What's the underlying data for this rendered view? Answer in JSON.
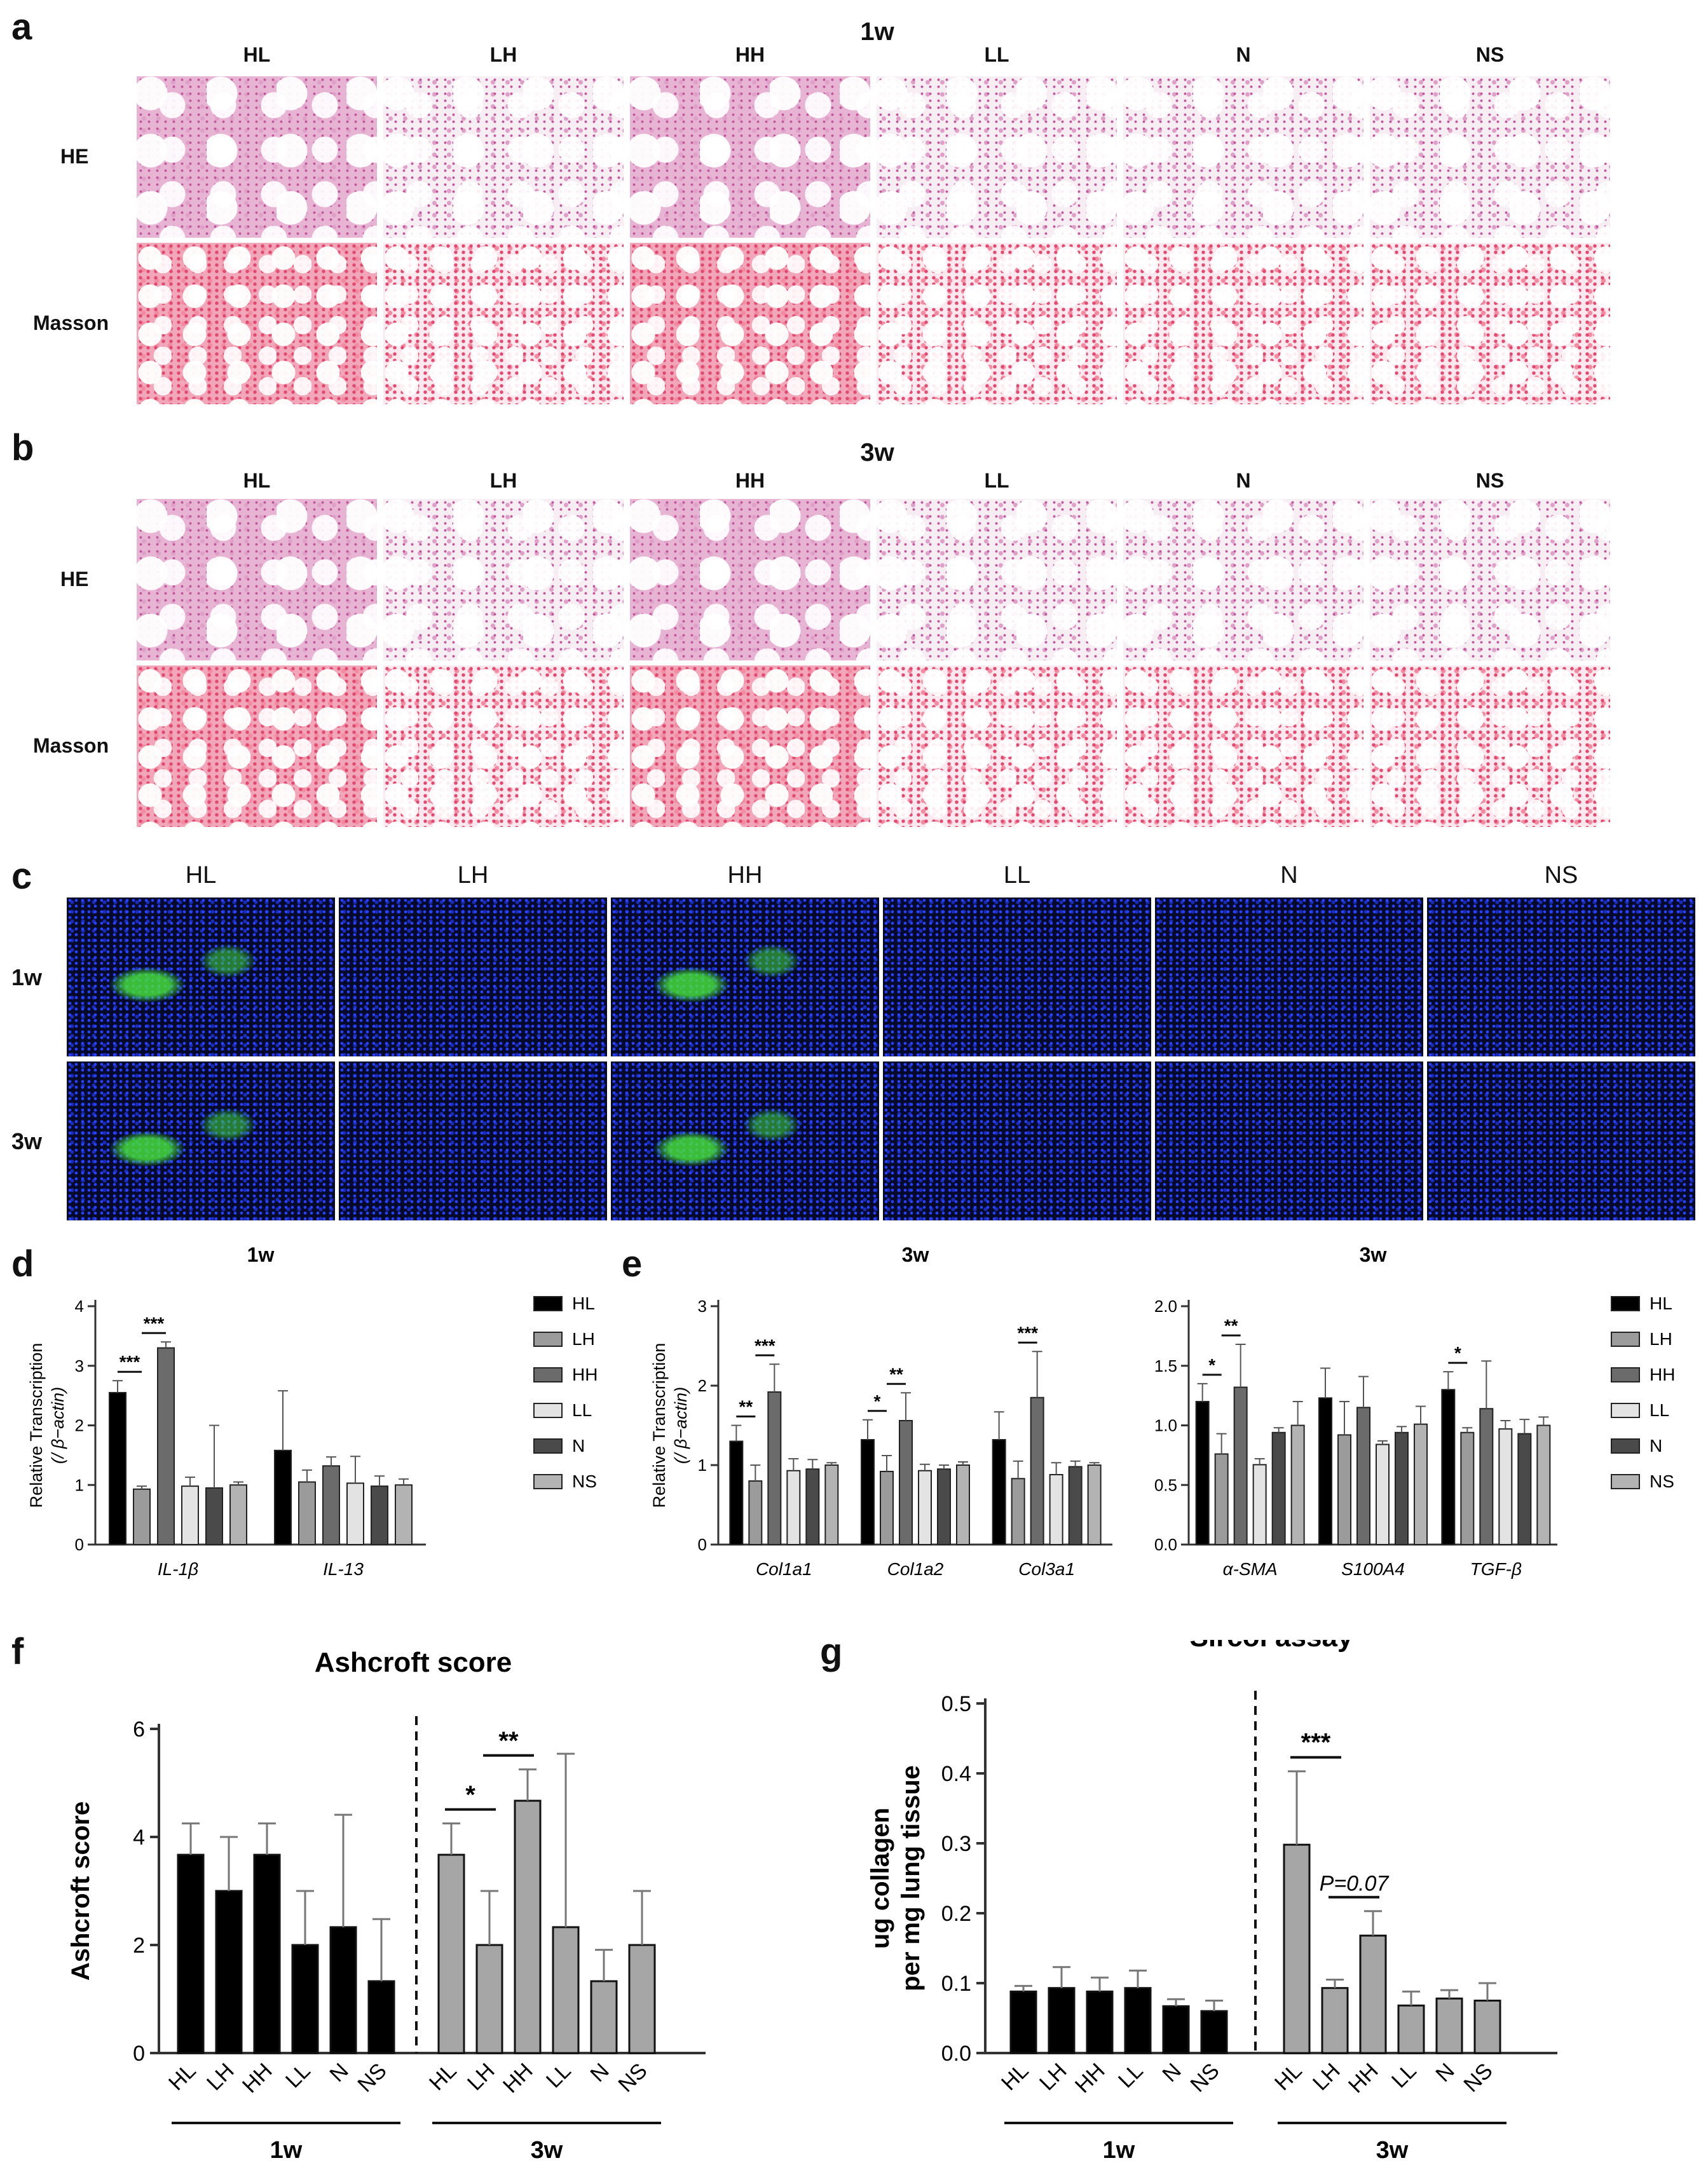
{
  "panels": {
    "a": "a",
    "b": "b",
    "c": "c",
    "d": "d",
    "e": "e",
    "f": "f",
    "g": "g"
  },
  "groups": [
    "HL",
    "LH",
    "HH",
    "LL",
    "N",
    "NS"
  ],
  "panel_a": {
    "title": "1w",
    "row_labels": [
      "HE",
      "Masson"
    ]
  },
  "panel_b": {
    "title": "3w",
    "row_labels": [
      "HE",
      "Masson"
    ]
  },
  "panel_c": {
    "row_labels": [
      "1w",
      "3w"
    ]
  },
  "panel_d": {
    "title": "1w",
    "ylabel_line1": "Relative Transcription",
    "ylabel_line2": "(/ β−actin)"
  },
  "panel_e": {
    "title_left": "3w",
    "title_right": "3w",
    "ylabel_line1": "Relative Transcription",
    "ylabel_line2": "(/ β−actin)"
  },
  "legend_colors": [
    "#000000",
    "#9b9b9b",
    "#6b6b6b",
    "#e3e3e3",
    "#4a4a4a",
    "#b3b3b3"
  ],
  "panel_f": {
    "title": "Ashcroft score",
    "ylabel": "Ashcroft score",
    "time_labels": [
      "1w",
      "3w"
    ]
  },
  "panel_g": {
    "title": "Sircol assay",
    "ylabel_line1": "ug collagen",
    "ylabel_line2": "per mg lung tissue",
    "time_labels": [
      "1w",
      "3w"
    ],
    "pvalue": "P=0.07"
  },
  "chart_data": [
    {
      "id": "d",
      "type": "bar",
      "title": "1w",
      "ylabel": "Relative Transcription (/ β−actin)",
      "categories": [
        "IL-1β",
        "IL-13"
      ],
      "ylim": [
        0,
        4
      ],
      "yticks": [
        0,
        1,
        2,
        3,
        4
      ],
      "series": [
        {
          "name": "HL",
          "values": [
            2.55,
            1.58
          ],
          "err": [
            0.2,
            1.0
          ]
        },
        {
          "name": "LH",
          "values": [
            0.93,
            1.05
          ],
          "err": [
            0.05,
            0.2
          ]
        },
        {
          "name": "HH",
          "values": [
            3.3,
            1.32
          ],
          "err": [
            0.1,
            0.15
          ]
        },
        {
          "name": "LL",
          "values": [
            0.98,
            1.03
          ],
          "err": [
            0.15,
            0.45
          ]
        },
        {
          "name": "N",
          "values": [
            0.95,
            0.98
          ],
          "err": [
            1.05,
            0.17
          ]
        },
        {
          "name": "NS",
          "values": [
            1.0,
            1.0
          ],
          "err": [
            0.05,
            0.1
          ]
        }
      ],
      "annotations": [
        {
          "cat": 0,
          "from": 0,
          "to": 1,
          "text": "***"
        },
        {
          "cat": 0,
          "from": 1,
          "to": 2,
          "text": "***"
        }
      ]
    },
    {
      "id": "e1",
      "type": "bar",
      "title": "3w",
      "ylabel": "Relative Transcription (/ β−actin)",
      "categories": [
        "Col1a1",
        "Col1a2",
        "Col3a1"
      ],
      "ylim": [
        0,
        3
      ],
      "yticks": [
        0,
        1,
        2,
        3
      ],
      "series": [
        {
          "name": "HL",
          "values": [
            1.3,
            1.32,
            1.32
          ],
          "err": [
            0.2,
            0.25,
            0.35
          ]
        },
        {
          "name": "LH",
          "values": [
            0.8,
            0.92,
            0.83
          ],
          "err": [
            0.2,
            0.2,
            0.22
          ]
        },
        {
          "name": "HH",
          "values": [
            1.92,
            1.56,
            1.85
          ],
          "err": [
            0.35,
            0.35,
            0.58
          ]
        },
        {
          "name": "LL",
          "values": [
            0.93,
            0.93,
            0.88
          ],
          "err": [
            0.15,
            0.08,
            0.15
          ]
        },
        {
          "name": "N",
          "values": [
            0.95,
            0.95,
            0.98
          ],
          "err": [
            0.12,
            0.05,
            0.07
          ]
        },
        {
          "name": "NS",
          "values": [
            1.0,
            1.0,
            1.0
          ],
          "err": [
            0.03,
            0.04,
            0.03
          ]
        }
      ],
      "annotations": [
        {
          "cat": 0,
          "from": 0,
          "to": 1,
          "text": "**"
        },
        {
          "cat": 0,
          "from": 1,
          "to": 2,
          "text": "***"
        },
        {
          "cat": 1,
          "from": 0,
          "to": 1,
          "text": "*"
        },
        {
          "cat": 1,
          "from": 1,
          "to": 2,
          "text": "**"
        },
        {
          "cat": 2,
          "from": 1,
          "to": 2,
          "text": "***"
        }
      ]
    },
    {
      "id": "e2",
      "type": "bar",
      "title": "3w",
      "categories": [
        "α-SMA",
        "S100A4",
        "TGF-β"
      ],
      "ylim": [
        0,
        2
      ],
      "yticks": [
        0,
        0.5,
        1.0,
        1.5,
        2.0
      ],
      "series": [
        {
          "name": "HL",
          "values": [
            1.2,
            1.23,
            1.3
          ],
          "err": [
            0.15,
            0.25,
            0.15
          ]
        },
        {
          "name": "LH",
          "values": [
            0.76,
            0.92,
            0.94
          ],
          "err": [
            0.17,
            0.28,
            0.04
          ]
        },
        {
          "name": "HH",
          "values": [
            1.32,
            1.15,
            1.14
          ],
          "err": [
            0.36,
            0.26,
            0.4
          ]
        },
        {
          "name": "LL",
          "values": [
            0.67,
            0.84,
            0.97
          ],
          "err": [
            0.05,
            0.03,
            0.07
          ]
        },
        {
          "name": "N",
          "values": [
            0.94,
            0.94,
            0.93
          ],
          "err": [
            0.04,
            0.05,
            0.12
          ]
        },
        {
          "name": "NS",
          "values": [
            1.0,
            1.01,
            1.0
          ],
          "err": [
            0.2,
            0.15,
            0.07
          ]
        }
      ],
      "annotations": [
        {
          "cat": 0,
          "from": 0,
          "to": 1,
          "text": "*"
        },
        {
          "cat": 0,
          "from": 1,
          "to": 2,
          "text": "**"
        },
        {
          "cat": 2,
          "from": 0,
          "to": 1,
          "text": "*"
        }
      ]
    },
    {
      "id": "f",
      "type": "bar",
      "title": "Ashcroft score",
      "ylabel": "Ashcroft score",
      "ylim": [
        0,
        6
      ],
      "yticks": [
        0,
        2,
        4,
        6
      ],
      "categories": [
        "HL",
        "LH",
        "HH",
        "LL",
        "N",
        "NS"
      ],
      "series": [
        {
          "name": "1w",
          "values": [
            3.67,
            3.0,
            3.67,
            2.0,
            2.33,
            1.33
          ],
          "err": [
            0.58,
            1.0,
            0.58,
            1.0,
            2.08,
            1.15
          ]
        },
        {
          "name": "3w",
          "values": [
            3.67,
            2.0,
            4.67,
            2.33,
            1.33,
            2.0
          ],
          "err": [
            0.58,
            1.0,
            0.58,
            3.21,
            0.58,
            1.0
          ]
        }
      ],
      "annotations": [
        {
          "series": 1,
          "from": 0,
          "to": 1,
          "text": "*"
        },
        {
          "series": 1,
          "from": 1,
          "to": 2,
          "text": "**"
        }
      ]
    },
    {
      "id": "g",
      "type": "bar",
      "title": "Sircol assay",
      "ylabel": "ug collagen per mg lung tissue",
      "ylim": [
        0,
        0.5
      ],
      "yticks": [
        0.0,
        0.1,
        0.2,
        0.3,
        0.4,
        0.5
      ],
      "categories": [
        "HL",
        "LH",
        "HH",
        "LL",
        "N",
        "NS"
      ],
      "series": [
        {
          "name": "1w",
          "values": [
            0.088,
            0.093,
            0.088,
            0.093,
            0.067,
            0.06
          ],
          "err": [
            0.008,
            0.03,
            0.02,
            0.025,
            0.01,
            0.015
          ]
        },
        {
          "name": "3w",
          "values": [
            0.298,
            0.093,
            0.168,
            0.068,
            0.078,
            0.075
          ],
          "err": [
            0.105,
            0.012,
            0.035,
            0.02,
            0.012,
            0.025
          ]
        }
      ],
      "annotations": [
        {
          "series": 1,
          "from": 0,
          "to": 1,
          "text": "***"
        },
        {
          "series": 1,
          "from": 1,
          "to": 2,
          "text": "P=0.07"
        }
      ]
    }
  ]
}
